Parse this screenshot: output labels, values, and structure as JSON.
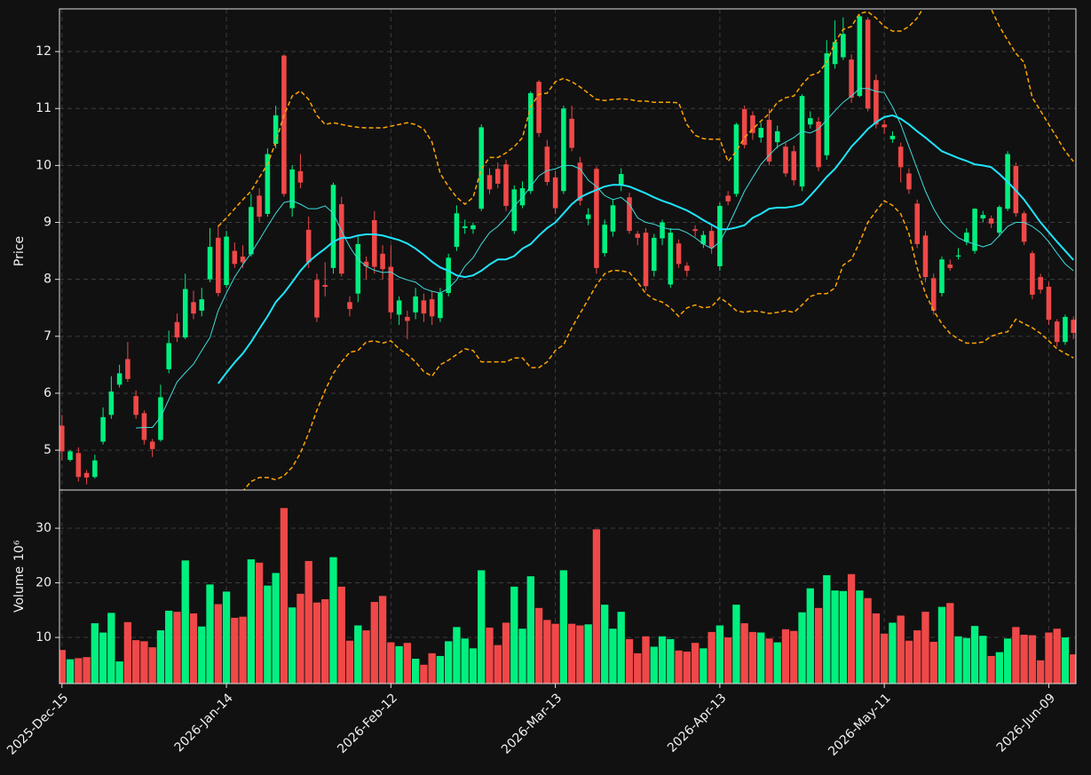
{
  "chart_data": [
    {
      "type": "candlestick",
      "ylabel": "Price",
      "ylim": [
        4.3,
        12.75
      ],
      "yticks": [
        5,
        6,
        7,
        8,
        9,
        10,
        11,
        12
      ],
      "grid": true,
      "up_color": "#00f07f",
      "down_color": "#f04848",
      "open": [
        5.43,
        4.83,
        4.95,
        4.6,
        4.53,
        5.15,
        5.62,
        6.15,
        6.6,
        5.95,
        5.65,
        5.15,
        5.18,
        6.42,
        7.25,
        6.98,
        7.6,
        7.45,
        8.0,
        8.73,
        7.9,
        8.5,
        8.4,
        8.44,
        9.47,
        9.15,
        10.38,
        11.93,
        9.25,
        9.9,
        8.87,
        7.99,
        7.9,
        8.2,
        9.32,
        7.6,
        7.75,
        8.31,
        9.04,
        8.45,
        8.22,
        7.38,
        7.34,
        7.42,
        7.63,
        7.65,
        7.32,
        7.76,
        8.57,
        8.9,
        8.88,
        9.24,
        9.83,
        9.94,
        10.02,
        8.85,
        9.3,
        9.55,
        11.47,
        10.33,
        9.79,
        9.55,
        10.82,
        10.05,
        9.06,
        9.94,
        8.46,
        8.84,
        9.66,
        9.44,
        8.8,
        8.82,
        8.15,
        8.72,
        7.91,
        8.63,
        8.24,
        8.88,
        8.62,
        8.85,
        8.23,
        9.47,
        9.5,
        10.99,
        10.88,
        10.49,
        10.8,
        10.41,
        10.33,
        10.25,
        9.63,
        10.72,
        10.77,
        10.18,
        11.78,
        11.9,
        11.86,
        11.22,
        12.56,
        11.5,
        10.72,
        10.46,
        10.33,
        9.86,
        9.33,
        8.77,
        8.02,
        7.76,
        8.26,
        8.4,
        8.66,
        8.5,
        9.07,
        9.07,
        8.82,
        9.24,
        9.99,
        9.16,
        8.46,
        8.04,
        7.87,
        7.26,
        6.9,
        7.29
      ],
      "high": [
        5.62,
        5.0,
        5.05,
        4.65,
        4.92,
        5.75,
        6.3,
        6.5,
        6.9,
        6.05,
        5.7,
        5.2,
        6.15,
        7.1,
        7.4,
        8.1,
        7.8,
        7.85,
        8.9,
        8.95,
        8.85,
        8.65,
        8.6,
        9.5,
        9.6,
        10.3,
        11.05,
        11.95,
        10.0,
        10.2,
        9.1,
        8.1,
        8.3,
        9.7,
        9.45,
        7.7,
        8.75,
        8.4,
        9.2,
        8.6,
        8.6,
        7.7,
        7.45,
        7.85,
        7.75,
        7.8,
        7.85,
        8.45,
        9.3,
        9.05,
        9.0,
        10.72,
        9.95,
        10.05,
        10.1,
        9.65,
        9.72,
        11.3,
        11.5,
        10.45,
        9.9,
        11.05,
        11.05,
        10.15,
        9.25,
        9.98,
        9.05,
        9.4,
        9.95,
        9.52,
        8.85,
        8.9,
        8.8,
        9.05,
        8.9,
        8.7,
        8.3,
        8.95,
        8.85,
        8.95,
        9.35,
        9.55,
        10.75,
        11.05,
        10.95,
        10.75,
        11.0,
        10.7,
        10.4,
        10.35,
        11.25,
        10.95,
        10.85,
        12.2,
        12.55,
        12.6,
        11.95,
        12.65,
        12.6,
        11.6,
        10.8,
        10.6,
        10.4,
        9.95,
        9.4,
        8.85,
        8.1,
        8.4,
        8.35,
        8.55,
        8.9,
        9.25,
        9.2,
        9.12,
        9.3,
        10.25,
        10.05,
        9.2,
        8.5,
        8.1,
        7.95,
        7.3,
        7.38,
        7.35
      ],
      "low": [
        4.82,
        4.8,
        4.45,
        4.4,
        4.5,
        5.1,
        5.55,
        6.1,
        6.2,
        5.55,
        5.1,
        4.88,
        5.15,
        6.35,
        6.9,
        6.95,
        7.3,
        7.35,
        7.95,
        7.7,
        7.85,
        8.2,
        8.2,
        8.4,
        9.0,
        9.1,
        10.3,
        9.45,
        9.1,
        9.6,
        8.2,
        7.25,
        7.7,
        8.1,
        8.05,
        7.35,
        7.6,
        8.0,
        8.1,
        8.0,
        7.3,
        7.2,
        6.95,
        7.3,
        7.25,
        7.2,
        7.25,
        7.7,
        8.5,
        8.8,
        8.8,
        9.2,
        9.5,
        9.6,
        9.2,
        8.8,
        9.25,
        9.5,
        10.5,
        9.65,
        9.15,
        9.5,
        10.25,
        9.3,
        8.95,
        8.1,
        8.4,
        8.75,
        9.55,
        8.8,
        8.6,
        7.8,
        8.05,
        8.6,
        7.85,
        8.2,
        8.05,
        8.75,
        8.55,
        8.45,
        8.15,
        9.3,
        9.45,
        10.3,
        10.45,
        10.4,
        10.0,
        10.3,
        9.8,
        9.65,
        9.55,
        10.65,
        9.9,
        10.1,
        11.7,
        11.85,
        11.1,
        11.2,
        10.95,
        10.65,
        10.55,
        10.4,
        9.7,
        9.5,
        8.55,
        7.95,
        7.38,
        7.7,
        8.15,
        8.35,
        8.6,
        8.45,
        9.0,
        8.9,
        8.75,
        9.2,
        9.1,
        8.6,
        7.65,
        7.75,
        7.2,
        6.82,
        6.85,
        6.95
      ],
      "close": [
        4.98,
        4.98,
        4.53,
        4.52,
        4.82,
        5.58,
        6.03,
        6.35,
        6.25,
        5.62,
        5.18,
        5.02,
        5.93,
        6.88,
        6.98,
        7.83,
        7.4,
        7.65,
        8.57,
        7.76,
        8.75,
        8.27,
        8.3,
        9.27,
        9.1,
        10.2,
        10.88,
        9.5,
        9.93,
        9.7,
        8.3,
        7.33,
        7.87,
        9.66,
        8.1,
        7.48,
        8.62,
        8.23,
        8.22,
        8.18,
        7.42,
        7.63,
        7.27,
        7.7,
        7.4,
        7.35,
        7.76,
        8.38,
        9.16,
        8.93,
        8.95,
        10.67,
        9.58,
        9.68,
        9.29,
        9.58,
        9.6,
        11.27,
        10.57,
        9.71,
        9.25,
        11.0,
        10.31,
        9.38,
        9.14,
        8.2,
        8.96,
        9.3,
        9.85,
        8.85,
        8.73,
        7.88,
        8.73,
        9.0,
        8.82,
        8.27,
        8.15,
        8.85,
        8.78,
        8.55,
        9.29,
        9.37,
        10.72,
        10.36,
        10.57,
        10.66,
        10.07,
        10.6,
        9.86,
        9.74,
        11.22,
        10.83,
        9.97,
        11.97,
        12.17,
        12.31,
        11.19,
        12.62,
        11.0,
        10.72,
        10.67,
        10.52,
        9.97,
        9.58,
        8.62,
        8.04,
        7.45,
        8.35,
        8.2,
        8.42,
        8.82,
        9.24,
        9.13,
        8.98,
        9.27,
        10.2,
        9.16,
        8.66,
        7.73,
        7.82,
        7.29,
        6.9,
        7.34,
        7.06
      ],
      "series": [
        {
          "color": "#3fdcdc",
          "width": 1,
          "dashed": false,
          "values": [
            null,
            null,
            null,
            null,
            null,
            null,
            null,
            null,
            null,
            5.39,
            5.4,
            5.4,
            5.58,
            5.89,
            6.2,
            6.36,
            6.51,
            6.75,
            6.98,
            7.45,
            7.76,
            8.04,
            8.26,
            8.46,
            8.69,
            8.93,
            9.16,
            9.35,
            9.38,
            9.32,
            9.24,
            9.24,
            9.29,
            9.16,
            8.85,
            8.57,
            8.35,
            8.23,
            8.16,
            8.12,
            8.13,
            8.04,
            7.99,
            7.95,
            7.84,
            7.79,
            7.76,
            7.84,
            7.99,
            8.23,
            8.38,
            8.62,
            8.82,
            8.93,
            9.08,
            9.29,
            9.44,
            9.63,
            9.82,
            9.91,
            9.94,
            10.0,
            10.0,
            9.94,
            9.74,
            9.63,
            9.47,
            9.4,
            9.44,
            9.32,
            9.08,
            9.0,
            8.97,
            8.91,
            8.88,
            8.88,
            8.82,
            8.73,
            8.62,
            8.54,
            8.66,
            8.93,
            9.24,
            9.55,
            9.79,
            10.02,
            10.18,
            10.33,
            10.41,
            10.49,
            10.6,
            10.57,
            10.64,
            10.8,
            10.96,
            11.11,
            11.22,
            11.35,
            11.35,
            11.3,
            11.28,
            11.03,
            10.72,
            10.33,
            9.94,
            9.55,
            9.24,
            9.0,
            8.85,
            8.73,
            8.66,
            8.62,
            8.57,
            8.62,
            8.77,
            8.93,
            9.0,
            9.0,
            8.93,
            8.82,
            8.66,
            8.46,
            8.27,
            8.15
          ]
        },
        {
          "color": "#1fe4ff",
          "width": 2,
          "dashed": false,
          "values": [
            null,
            null,
            null,
            null,
            null,
            null,
            null,
            null,
            null,
            null,
            null,
            null,
            null,
            null,
            null,
            null,
            null,
            null,
            null,
            6.17,
            6.36,
            6.54,
            6.7,
            6.9,
            7.13,
            7.35,
            7.6,
            7.76,
            7.95,
            8.15,
            8.31,
            8.43,
            8.54,
            8.66,
            8.73,
            8.73,
            8.77,
            8.79,
            8.79,
            8.77,
            8.73,
            8.69,
            8.63,
            8.54,
            8.43,
            8.31,
            8.21,
            8.15,
            8.07,
            8.04,
            8.07,
            8.15,
            8.26,
            8.35,
            8.35,
            8.41,
            8.54,
            8.62,
            8.77,
            8.9,
            9.0,
            9.16,
            9.32,
            9.44,
            9.51,
            9.57,
            9.63,
            9.66,
            9.66,
            9.63,
            9.57,
            9.51,
            9.44,
            9.38,
            9.33,
            9.27,
            9.21,
            9.13,
            9.04,
            8.96,
            8.88,
            8.88,
            8.91,
            8.95,
            9.08,
            9.15,
            9.24,
            9.26,
            9.26,
            9.28,
            9.32,
            9.47,
            9.63,
            9.8,
            9.94,
            10.13,
            10.33,
            10.48,
            10.64,
            10.76,
            10.85,
            10.88,
            10.82,
            10.72,
            10.6,
            10.49,
            10.37,
            10.25,
            10.19,
            10.13,
            10.08,
            10.02,
            10.0,
            9.97,
            9.85,
            9.71,
            9.56,
            9.4,
            9.2,
            9.0,
            8.83,
            8.66,
            8.5,
            8.34
          ]
        },
        {
          "color": "#ffa500",
          "width": 1.5,
          "dashed": true,
          "values": [
            null,
            null,
            null,
            null,
            null,
            null,
            null,
            null,
            null,
            null,
            null,
            null,
            null,
            null,
            null,
            null,
            null,
            null,
            null,
            8.93,
            9.08,
            9.24,
            9.4,
            9.55,
            9.79,
            10.02,
            10.41,
            10.88,
            11.22,
            11.31,
            11.16,
            10.88,
            10.72,
            10.75,
            10.72,
            10.69,
            10.67,
            10.66,
            10.66,
            10.66,
            10.69,
            10.72,
            10.75,
            10.72,
            10.64,
            10.41,
            9.86,
            9.63,
            9.44,
            9.32,
            9.44,
            9.94,
            10.14,
            10.14,
            10.22,
            10.33,
            10.49,
            11.03,
            11.25,
            11.27,
            11.47,
            11.53,
            11.47,
            11.38,
            11.27,
            11.16,
            11.14,
            11.16,
            11.17,
            11.16,
            11.13,
            11.13,
            11.11,
            11.11,
            11.11,
            11.1,
            10.72,
            10.53,
            10.47,
            10.46,
            10.46,
            10.07,
            10.25,
            10.49,
            10.64,
            10.78,
            10.91,
            11.11,
            11.19,
            11.22,
            11.42,
            11.58,
            11.63,
            11.81,
            12.16,
            12.39,
            12.44,
            12.67,
            12.7,
            12.59,
            12.44,
            12.36,
            12.36,
            12.44,
            12.59,
            12.83,
            12.98,
            13.1,
            13.2,
            13.25,
            13.2,
            13.1,
            12.95,
            12.75,
            12.44,
            12.2,
            11.97,
            11.81,
            11.19,
            10.96,
            10.72,
            10.49,
            10.25,
            10.07
          ]
        },
        {
          "color": "#ffa500",
          "width": 1.5,
          "dashed": true,
          "values": [
            null,
            null,
            null,
            null,
            null,
            null,
            null,
            null,
            null,
            null,
            null,
            null,
            null,
            null,
            null,
            null,
            null,
            null,
            null,
            4.0,
            4.05,
            4.15,
            4.28,
            4.45,
            4.52,
            4.52,
            4.48,
            4.55,
            4.7,
            4.95,
            5.3,
            5.7,
            6.05,
            6.35,
            6.55,
            6.72,
            6.75,
            6.9,
            6.92,
            6.88,
            6.92,
            6.78,
            6.68,
            6.55,
            6.38,
            6.3,
            6.5,
            6.58,
            6.68,
            6.78,
            6.75,
            6.55,
            6.55,
            6.55,
            6.55,
            6.62,
            6.62,
            6.45,
            6.45,
            6.55,
            6.75,
            6.85,
            7.15,
            7.4,
            7.65,
            7.9,
            8.1,
            8.16,
            8.15,
            8.12,
            7.95,
            7.75,
            7.65,
            7.6,
            7.5,
            7.35,
            7.5,
            7.55,
            7.5,
            7.52,
            7.68,
            7.58,
            7.45,
            7.42,
            7.45,
            7.43,
            7.4,
            7.42,
            7.45,
            7.42,
            7.55,
            7.7,
            7.75,
            7.75,
            7.85,
            8.25,
            8.35,
            8.65,
            9.0,
            9.2,
            9.38,
            9.3,
            9.15,
            8.8,
            8.2,
            7.75,
            7.45,
            7.22,
            7.05,
            6.95,
            6.88,
            6.88,
            6.9,
            7.0,
            7.05,
            7.08,
            7.3,
            7.22,
            7.15,
            7.05,
            6.92,
            6.78,
            6.7,
            6.62
          ]
        }
      ]
    },
    {
      "type": "bar",
      "ylabel": "Volume",
      "scale_label": "10⁶",
      "ylim": [
        1.55,
        37
      ],
      "yticks": [
        10,
        20,
        30
      ],
      "grid": true,
      "up_color": "#00f07f",
      "down_color": "#f04848",
      "values": [
        7.7,
        6.0,
        6.2,
        6.4,
        12.6,
        10.9,
        14.5,
        5.6,
        12.8,
        9.5,
        9.3,
        8.2,
        11.3,
        14.9,
        14.7,
        24.1,
        14.4,
        12.0,
        19.7,
        16.1,
        18.4,
        13.6,
        13.8,
        24.3,
        23.7,
        19.5,
        21.8,
        33.7,
        15.5,
        18.0,
        24.0,
        16.4,
        17.0,
        24.7,
        19.3,
        9.4,
        12.2,
        11.3,
        16.5,
        17.6,
        9.1,
        8.4,
        9.0,
        6.1,
        5.0,
        7.1,
        6.6,
        9.3,
        11.9,
        9.8,
        8.0,
        22.3,
        11.8,
        8.6,
        12.7,
        19.3,
        11.6,
        21.2,
        15.4,
        13.2,
        12.5,
        22.3,
        12.5,
        12.2,
        12.4,
        29.8,
        16.0,
        11.6,
        14.7,
        9.7,
        7.1,
        10.2,
        8.3,
        10.2,
        9.7,
        7.6,
        7.4,
        9.0,
        8.0,
        11.0,
        12.2,
        10.0,
        16.0,
        12.6,
        11.0,
        10.9,
        9.8,
        9.1,
        11.5,
        11.2,
        14.6,
        19.0,
        15.4,
        21.4,
        18.6,
        18.5,
        21.6,
        18.6,
        17.2,
        14.4,
        10.7,
        12.7,
        14.0,
        9.4,
        11.3,
        14.7,
        9.2,
        15.6,
        16.3,
        10.2,
        9.9,
        12.1,
        10.3,
        6.6,
        7.3,
        9.8,
        11.9,
        10.5,
        10.4,
        5.8,
        10.9,
        11.6,
        10.0,
        6.9
      ],
      "xlim": [
        -0.3,
        123.3
      ],
      "xticks": [
        {
          "value": 0,
          "label": "2025-Dec-15"
        },
        {
          "value": 20,
          "label": "2026-Jan-14"
        },
        {
          "value": 40,
          "label": "2026-Feb-12"
        },
        {
          "value": 60,
          "label": "2026-Mar-13"
        },
        {
          "value": 80,
          "label": "2026-Apr-13"
        },
        {
          "value": 100,
          "label": "2026-May-11"
        },
        {
          "value": 120,
          "label": "2026-Jun-09"
        }
      ]
    }
  ]
}
